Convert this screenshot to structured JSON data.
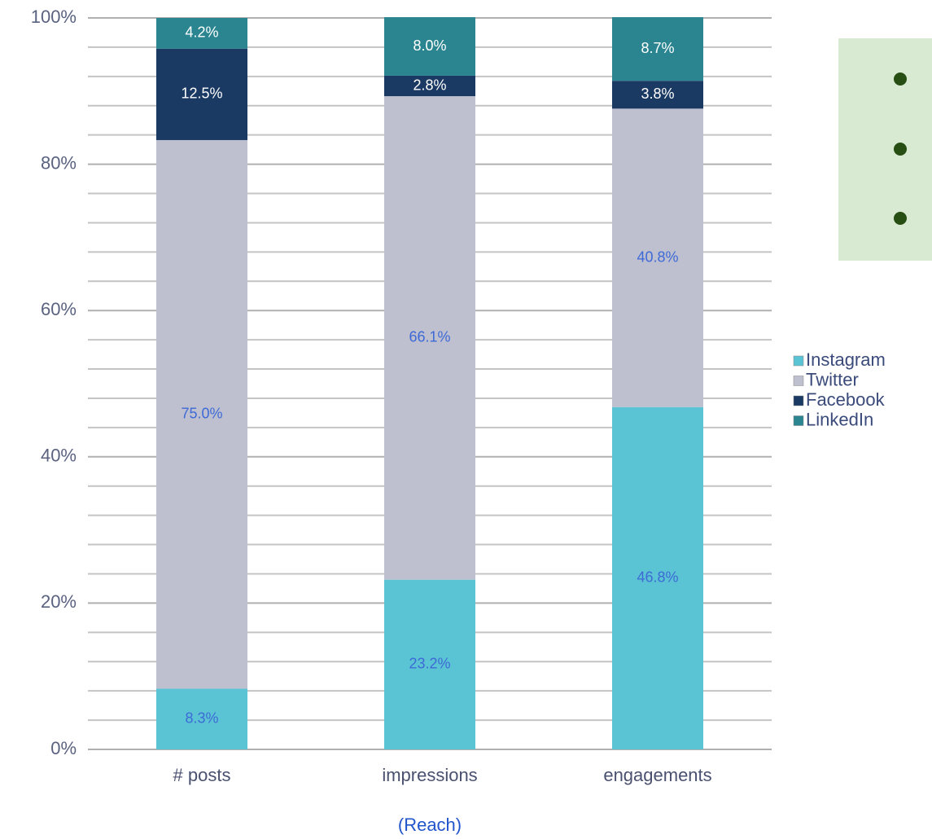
{
  "chart_data": {
    "type": "stacked_bar",
    "categories": [
      "# posts",
      "impressions",
      "engagements"
    ],
    "series": [
      {
        "name": "Instagram",
        "color": "#5bc4d4",
        "label_color": "#3d6ad6",
        "values": [
          8.3,
          23.2,
          46.8
        ],
        "value_labels": [
          "8.3%",
          "23.2%",
          "46.8%"
        ]
      },
      {
        "name": "Twitter",
        "color": "#bebfcf",
        "label_color": "#3d6ad6",
        "values": [
          75.0,
          66.1,
          40.8
        ],
        "value_labels": [
          "75.0%",
          "66.1%",
          "40.8%"
        ]
      },
      {
        "name": "Facebook",
        "color": "#1b3a63",
        "label_color": "#ffffff",
        "values": [
          12.5,
          2.8,
          3.8
        ],
        "value_labels": [
          "12.5%",
          "2.8%",
          "3.8%"
        ]
      },
      {
        "name": "LinkedIn",
        "color": "#2a8591",
        "label_color": "#ffffff",
        "values": [
          4.2,
          8.0,
          8.7
        ],
        "value_labels": [
          "4.2%",
          "8.0%",
          "8.7%"
        ]
      }
    ],
    "ylim": [
      0,
      100
    ],
    "yticks": [
      {
        "value": 0,
        "label": "0%"
      },
      {
        "value": 20,
        "label": "20%"
      },
      {
        "value": 40,
        "label": "40%"
      },
      {
        "value": 60,
        "label": "60%"
      },
      {
        "value": 80,
        "label": "80%"
      },
      {
        "value": 100,
        "label": "100%"
      }
    ],
    "minor_yticks": [
      4,
      8,
      12,
      16,
      24,
      28,
      32,
      36,
      44,
      48,
      52,
      56,
      64,
      68,
      72,
      76,
      84,
      88,
      92,
      96
    ],
    "grid": true,
    "legend": "right",
    "caption": "(Reach)"
  }
}
